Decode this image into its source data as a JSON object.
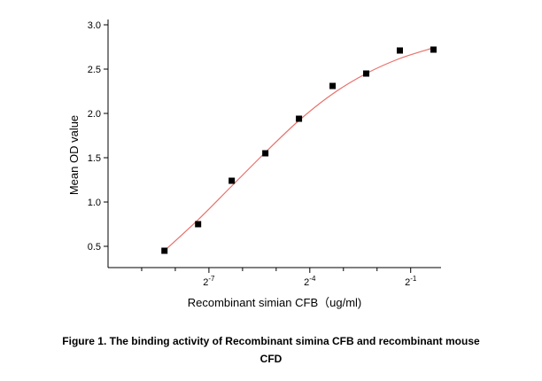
{
  "chart_data": {
    "type": "scatter",
    "xlabel": "Recombinant simian CFB（ug/ml)",
    "ylabel": "Mean OD value",
    "caption_lines": [
      "Figure 1. The binding activity of Recombinant simina CFB and recombinant mouse",
      "CFD"
    ],
    "xscale": "log2",
    "xlim": [
      0.0009765625,
      0.935
    ],
    "ylim": [
      0.26,
      3.06
    ],
    "xticks": [
      {
        "value": 0.0078125,
        "label": "2",
        "exponent": "-7"
      },
      {
        "value": 0.0625,
        "label": "2",
        "exponent": "-4"
      },
      {
        "value": 0.5,
        "label": "2",
        "exponent": "-1"
      }
    ],
    "xminor_ticks": [
      0.001953125,
      0.00390625,
      0.015625,
      0.03125,
      0.125,
      0.25
    ],
    "yticks": [
      0.5,
      {
        "value": 1,
        "label": "1.0"
      },
      1.5,
      {
        "value": 2,
        "label": "2.0"
      },
      2.5,
      {
        "value": 3,
        "label": "3.0"
      }
    ],
    "x": [
      0.003125,
      0.00625,
      0.0125,
      0.025,
      0.05,
      0.1,
      0.2,
      0.4,
      0.8
    ],
    "series": [
      {
        "type": "scatter",
        "color": "#000000",
        "values": [
          0.45,
          0.75,
          1.24,
          1.55,
          1.94,
          2.31,
          2.45,
          2.71,
          2.72
        ]
      },
      {
        "type": "line",
        "color": "#e8706a",
        "values": [
          0.45,
          0.8,
          1.18,
          1.56,
          1.92,
          2.22,
          2.45,
          2.62,
          2.74
        ]
      }
    ]
  }
}
